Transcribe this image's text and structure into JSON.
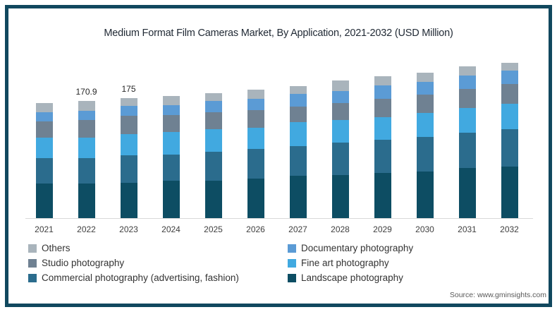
{
  "title": "Medium Format Film Cameras Market, By Application, 2021-2032 (USD Million)",
  "source": "Source: www.gminsights.com",
  "frame_color": "#11485e",
  "chart_data": {
    "type": "bar",
    "stacked": true,
    "title": "Medium Format Film Cameras Market, By Application, 2021-2032 (USD Million)",
    "xlabel": "",
    "ylabel": "USD Million",
    "ylim": [
      0,
      240
    ],
    "grid": false,
    "legend_position": "bottom",
    "categories": [
      "2021",
      "2022",
      "2023",
      "2024",
      "2025",
      "2026",
      "2027",
      "2028",
      "2029",
      "2030",
      "2031",
      "2032"
    ],
    "series": [
      {
        "name": "Landscape photography",
        "color": "#0d4d63",
        "values": [
          50.5,
          50.4,
          51.8,
          54.9,
          54.9,
          57.3,
          61.8,
          63.4,
          66.2,
          67.6,
          73.7,
          74.8
        ]
      },
      {
        "name": "Commercial photography (advertising, fashion)",
        "color": "#2b6c8d",
        "values": [
          36.8,
          37.3,
          39.7,
          38.4,
          41.9,
          44.0,
          43.6,
          47.4,
          48.7,
          50.9,
          51.5,
          55.6
        ]
      },
      {
        "name": "Fine art photography",
        "color": "#41a9e0",
        "values": [
          29.9,
          30.2,
          30.8,
          32.7,
          33.6,
          30.9,
          35.3,
          32.3,
          32.3,
          35.0,
          36.1,
          36.8
        ]
      },
      {
        "name": "Studio photography",
        "color": "#6f8192",
        "values": [
          23.7,
          25.0,
          26.9,
          24.4,
          24.1,
          25.8,
          22.4,
          25.0,
          26.8,
          26.8,
          27.5,
          28.5
        ]
      },
      {
        "name": "Documentary photography",
        "color": "#5b9bd5",
        "values": [
          13.4,
          13.7,
          14.8,
          15.1,
          16.8,
          16.2,
          18.2,
          17.2,
          19.9,
          18.8,
          19.9,
          19.9
        ]
      },
      {
        "name": "Others",
        "color": "#a9b4bc",
        "values": [
          13.7,
          14.3,
          11.0,
          13.1,
          11.6,
          13.0,
          11.9,
          15.5,
          13.1,
          13.7,
          12.8,
          11.6
        ]
      }
    ],
    "totals": [
      168.0,
      170.9,
      175.0,
      178.6,
      182.9,
      187.2,
      193.2,
      200.8,
      207.0,
      212.8,
      221.5,
      227.2
    ],
    "bar_labels": {
      "2022": "170.9",
      "2023": "175"
    }
  },
  "legend": {
    "left": [
      {
        "label": "Others",
        "color": "#a9b4bc"
      },
      {
        "label": "Studio photography",
        "color": "#6f8192"
      },
      {
        "label": "Commercial photography (advertising, fashion)",
        "color": "#2b6c8d"
      }
    ],
    "right": [
      {
        "label": "Documentary photography",
        "color": "#5b9bd5"
      },
      {
        "label": "Fine art photography",
        "color": "#41a9e0"
      },
      {
        "label": "Landscape photography",
        "color": "#0d4d63"
      }
    ]
  }
}
